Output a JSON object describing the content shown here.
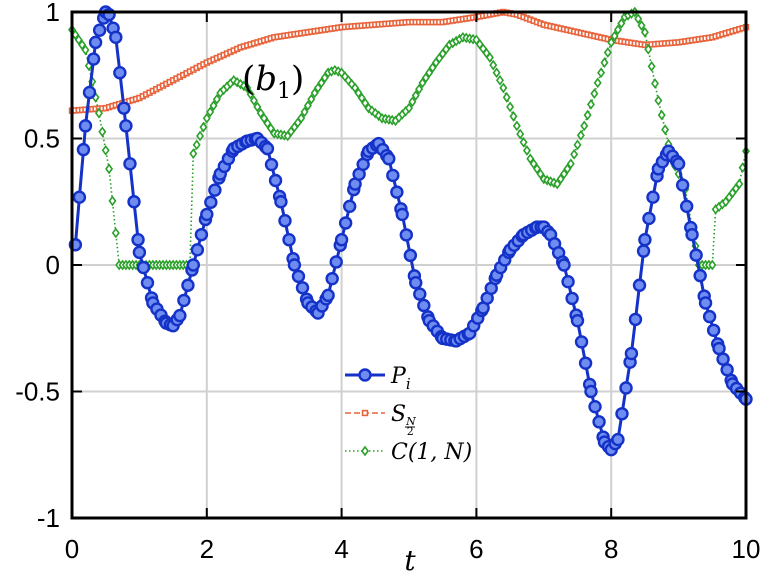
{
  "chart_data": {
    "type": "line",
    "panel_label": "(b1)",
    "xlabel": "t",
    "ylabel": "",
    "xlim": [
      0,
      10
    ],
    "ylim": [
      -1,
      1
    ],
    "x_ticks": [
      0,
      2,
      4,
      6,
      8,
      10
    ],
    "x_tick_labels": [
      "0",
      "2",
      "4",
      "6",
      "8",
      "10"
    ],
    "y_ticks": [
      -1,
      -0.5,
      0,
      0.5,
      1
    ],
    "y_tick_labels": [
      "-1",
      "-0.5",
      "0",
      "0.5",
      "1"
    ],
    "grid": true,
    "legend_position": "lower-center",
    "series": [
      {
        "name": "P_i",
        "legend_label": "P_i",
        "color": "#1432c8",
        "marker": "circle",
        "linestyle": "solid",
        "x": [
          0.05,
          0.2,
          0.35,
          0.5,
          0.55,
          0.65,
          0.8,
          1.0,
          1.2,
          1.4,
          1.5,
          1.6,
          1.8,
          2.0,
          2.2,
          2.4,
          2.6,
          2.75,
          2.9,
          3.1,
          3.3,
          3.5,
          3.65,
          3.8,
          4.0,
          4.2,
          4.4,
          4.55,
          4.7,
          4.9,
          5.1,
          5.3,
          5.5,
          5.7,
          5.9,
          6.1,
          6.3,
          6.5,
          6.7,
          6.9,
          7.0,
          7.1,
          7.3,
          7.5,
          7.7,
          7.9,
          8.0,
          8.1,
          8.3,
          8.5,
          8.7,
          8.85,
          9.0,
          9.2,
          9.4,
          9.6,
          9.8,
          10.0
        ],
        "y": [
          0.08,
          0.55,
          0.88,
          1.0,
          0.99,
          0.9,
          0.55,
          0.05,
          -0.15,
          -0.23,
          -0.24,
          -0.2,
          0.0,
          0.2,
          0.36,
          0.46,
          0.49,
          0.5,
          0.46,
          0.25,
          0.0,
          -0.15,
          -0.19,
          -0.12,
          0.1,
          0.32,
          0.45,
          0.48,
          0.42,
          0.2,
          -0.07,
          -0.22,
          -0.29,
          -0.3,
          -0.27,
          -0.17,
          -0.04,
          0.06,
          0.12,
          0.15,
          0.15,
          0.12,
          0.0,
          -0.22,
          -0.5,
          -0.7,
          -0.73,
          -0.69,
          -0.35,
          0.1,
          0.38,
          0.45,
          0.4,
          0.12,
          -0.15,
          -0.33,
          -0.47,
          -0.53
        ]
      },
      {
        "name": "S_{N/2}",
        "legend_label": "S_N/2",
        "color": "#e8643c",
        "marker": "square",
        "linestyle": "dashed",
        "x": [
          0.0,
          0.5,
          1.0,
          1.5,
          2.0,
          2.5,
          3.0,
          3.5,
          4.0,
          4.5,
          5.0,
          5.5,
          6.0,
          6.4,
          6.6,
          7.0,
          7.5,
          8.0,
          8.5,
          9.0,
          9.5,
          10.0
        ],
        "y": [
          0.61,
          0.62,
          0.66,
          0.73,
          0.8,
          0.86,
          0.9,
          0.92,
          0.94,
          0.95,
          0.96,
          0.96,
          0.98,
          1.0,
          0.99,
          0.95,
          0.92,
          0.89,
          0.87,
          0.88,
          0.9,
          0.94
        ]
      },
      {
        "name": "C(1,N)",
        "legend_label": "C(1, N)",
        "color": "#2aa02a",
        "marker": "diamond",
        "linestyle": "dotted",
        "x": [
          0.0,
          0.2,
          0.4,
          0.55,
          0.7,
          0.75,
          1.0,
          1.3,
          1.6,
          1.75,
          1.8,
          2.0,
          2.2,
          2.4,
          2.6,
          2.8,
          3.0,
          3.2,
          3.4,
          3.6,
          3.8,
          3.9,
          4.0,
          4.2,
          4.4,
          4.6,
          4.8,
          5.0,
          5.2,
          5.4,
          5.6,
          5.8,
          6.0,
          6.2,
          6.4,
          6.6,
          6.8,
          7.0,
          7.2,
          7.4,
          7.6,
          7.8,
          8.0,
          8.2,
          8.35,
          8.5,
          8.7,
          8.9,
          9.1,
          9.3,
          9.35,
          9.5,
          9.55,
          9.7,
          9.9,
          10.0
        ],
        "y": [
          0.93,
          0.85,
          0.6,
          0.38,
          0.0,
          0.0,
          0.0,
          0.0,
          0.0,
          0.0,
          0.44,
          0.58,
          0.68,
          0.73,
          0.7,
          0.6,
          0.52,
          0.51,
          0.58,
          0.68,
          0.76,
          0.77,
          0.76,
          0.7,
          0.62,
          0.58,
          0.57,
          0.62,
          0.72,
          0.8,
          0.87,
          0.9,
          0.89,
          0.82,
          0.7,
          0.55,
          0.42,
          0.34,
          0.32,
          0.4,
          0.55,
          0.72,
          0.88,
          0.98,
          1.0,
          0.92,
          0.65,
          0.42,
          0.3,
          0.0,
          0.0,
          0.0,
          0.22,
          0.25,
          0.32,
          0.45
        ]
      }
    ]
  }
}
